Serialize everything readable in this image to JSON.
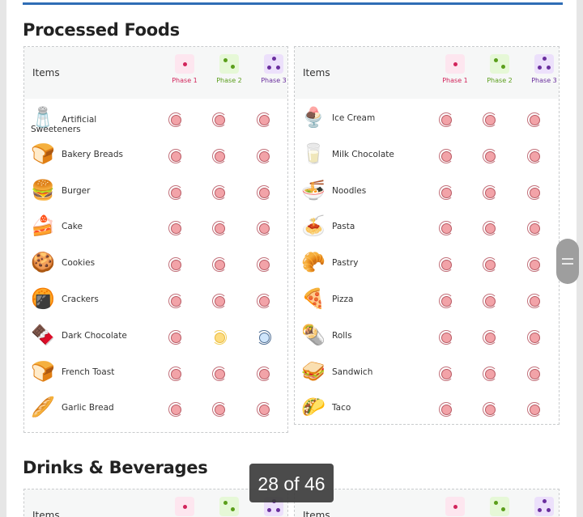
{
  "sections": [
    {
      "title": "Processed Foods",
      "header": {
        "items_label": "Items",
        "phases": [
          {
            "label": "Phase 1",
            "color": "#d2245b",
            "bg": "#fde6ef",
            "dots": 1
          },
          {
            "label": "Phase 2",
            "color": "#5a9e1a",
            "bg": "#e6f8d7",
            "dots": 2
          },
          {
            "label": "Phase 3",
            "color": "#6a2f9e",
            "bg": "#ece0fb",
            "dots": 3
          }
        ]
      },
      "left_items": [
        {
          "name": "Artificial Sweeteners",
          "icon": "sweetener-icon",
          "glyph": "🧂",
          "phases": [
            "red",
            "red",
            "red"
          ]
        },
        {
          "name": "Bakery Breads",
          "icon": "bread-icon",
          "glyph": "🍞",
          "phases": [
            "red",
            "red",
            "red"
          ]
        },
        {
          "name": "Burger",
          "icon": "burger-icon",
          "glyph": "🍔",
          "phases": [
            "red",
            "red",
            "red"
          ]
        },
        {
          "name": "Cake",
          "icon": "cake-icon",
          "glyph": "🍰",
          "phases": [
            "red",
            "red",
            "red"
          ]
        },
        {
          "name": "Cookies",
          "icon": "cookie-icon",
          "glyph": "🍪",
          "phases": [
            "red",
            "red",
            "red"
          ]
        },
        {
          "name": "Crackers",
          "icon": "cracker-icon",
          "glyph": "🍘",
          "phases": [
            "red",
            "red",
            "red"
          ]
        },
        {
          "name": "Dark Chocolate",
          "icon": "chocolate-icon",
          "glyph": "🍫",
          "phases": [
            "red",
            "yellow",
            "blue"
          ]
        },
        {
          "name": "French Toast",
          "icon": "toast-icon",
          "glyph": "🍞",
          "phases": [
            "red",
            "red",
            "red"
          ]
        },
        {
          "name": "Garlic Bread",
          "icon": "garlic-bread-icon",
          "glyph": "🥖",
          "phases": [
            "red",
            "red",
            "red"
          ]
        }
      ],
      "right_items": [
        {
          "name": "Ice Cream",
          "icon": "ice-cream-icon",
          "glyph": "🍨",
          "phases": [
            "red",
            "red",
            "red"
          ]
        },
        {
          "name": "Milk Chocolate",
          "icon": "milk-chocolate-icon",
          "glyph": "🥛",
          "phases": [
            "red",
            "red",
            "red"
          ]
        },
        {
          "name": "Noodles",
          "icon": "noodles-icon",
          "glyph": "🍜",
          "phases": [
            "red",
            "red",
            "red"
          ]
        },
        {
          "name": "Pasta",
          "icon": "pasta-icon",
          "glyph": "🍝",
          "phases": [
            "red",
            "red",
            "red"
          ]
        },
        {
          "name": "Pastry",
          "icon": "pastry-icon",
          "glyph": "🥐",
          "phases": [
            "red",
            "red",
            "red"
          ]
        },
        {
          "name": "Pizza",
          "icon": "pizza-icon",
          "glyph": "🍕",
          "phases": [
            "red",
            "red",
            "red"
          ]
        },
        {
          "name": "Rolls",
          "icon": "roll-icon",
          "glyph": "🌯",
          "phases": [
            "red",
            "red",
            "red"
          ]
        },
        {
          "name": "Sandwich",
          "icon": "sandwich-icon",
          "glyph": "🥪",
          "phases": [
            "red",
            "red",
            "red"
          ]
        },
        {
          "name": "Taco",
          "icon": "taco-icon",
          "glyph": "🌮",
          "phases": [
            "red",
            "red",
            "red"
          ]
        }
      ]
    },
    {
      "title": "Drinks & Beverages",
      "header": {
        "items_label": "Items"
      }
    }
  ],
  "counter": {
    "text": "28 of 46"
  },
  "colors": {
    "accent_bar": "#2f6db5",
    "avoid": "#f2a3a8",
    "limit": "#fddc80",
    "allow": "#cfe5fb"
  }
}
